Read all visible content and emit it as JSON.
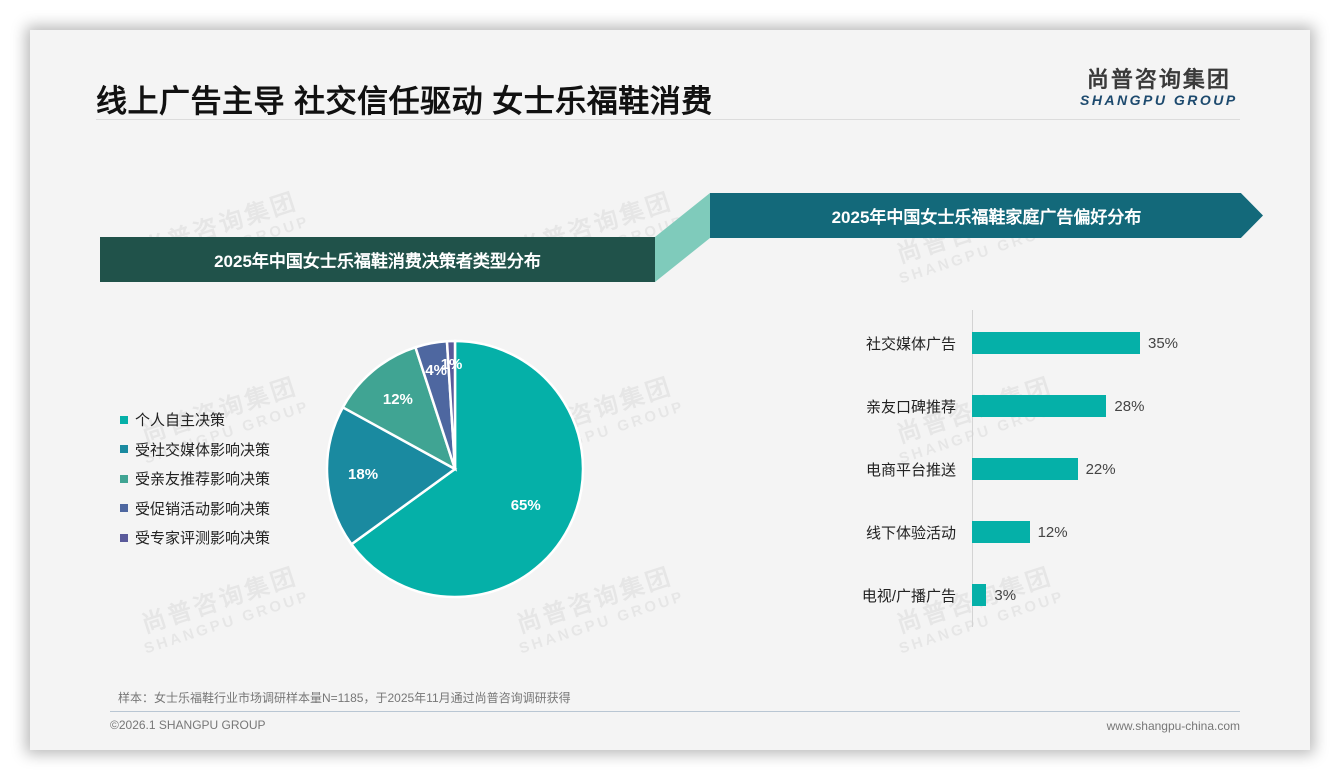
{
  "header": {
    "title": "线上广告主导 社交信任驱动 女士乐福鞋消费",
    "logo_cn": "尚普咨询集团",
    "logo_en": "SHANGPU GROUP"
  },
  "watermark": {
    "cn": "尚普咨询集团",
    "en": "SHANGPU GROUP"
  },
  "left_panel": {
    "banner": "2025年中国女士乐福鞋消费决策者类型分布",
    "legend": [
      {
        "label": "个人自主决策",
        "color": "#05b0a8"
      },
      {
        "label": "受社交媒体影响决策",
        "color": "#1a8aa0"
      },
      {
        "label": "受亲友推荐影响决策",
        "color": "#40a493"
      },
      {
        "label": "受促销活动影响决策",
        "color": "#4e67a0"
      },
      {
        "label": "受专家评测影响决策",
        "color": "#5a5a9a"
      }
    ]
  },
  "right_panel": {
    "banner": "2025年中国女士乐福鞋家庭广告偏好分布"
  },
  "chart_data": [
    {
      "type": "pie",
      "title": "2025年中国女士乐福鞋消费决策者类型分布",
      "categories": [
        "个人自主决策",
        "受社交媒体影响决策",
        "受亲友推荐影响决策",
        "受促销活动影响决策",
        "受专家评测影响决策"
      ],
      "values": [
        65,
        18,
        12,
        4,
        1
      ],
      "labels": [
        "65%",
        "18%",
        "12%",
        "4%",
        "1%"
      ],
      "colors": [
        "#05b0a8",
        "#1a8aa0",
        "#40a493",
        "#4e67a0",
        "#5a5a9a"
      ],
      "start_angle": "12 o'clock, clockwise",
      "legend_position": "left"
    },
    {
      "type": "bar",
      "orientation": "horizontal",
      "title": "2025年中国女士乐福鞋家庭广告偏好分布",
      "categories": [
        "社交媒体广告",
        "亲友口碑推荐",
        "电商平台推送",
        "线下体验活动",
        "电视/广播广告"
      ],
      "values": [
        35,
        28,
        22,
        12,
        3
      ],
      "labels": [
        "35%",
        "28%",
        "22%",
        "12%",
        "3%"
      ],
      "color": "#05b0a8",
      "xlabel": "",
      "ylabel": "",
      "grid": false
    }
  ],
  "footer": {
    "note": "样本：女士乐福鞋行业市场调研样本量N=1185，于2025年11月通过尚普咨询调研获得",
    "copyright": "©2026.1 SHANGPU GROUP",
    "website": "www.shangpu-china.com"
  }
}
